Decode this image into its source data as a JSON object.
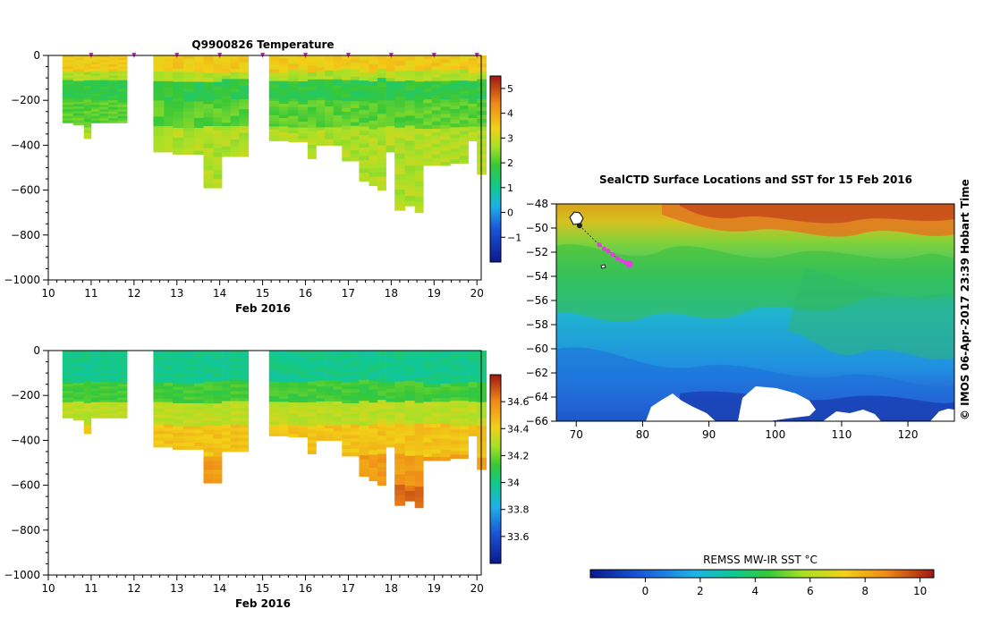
{
  "chart_data": [
    {
      "id": "temperature_section",
      "type": "heatmap",
      "title": "Q9900826  Temperature",
      "xlabel": "Feb 2016",
      "ylabel": "",
      "xlim": [
        10,
        20.1
      ],
      "ylim": [
        -1000,
        0
      ],
      "xticks": [
        10,
        11,
        12,
        13,
        14,
        15,
        16,
        17,
        18,
        19,
        20
      ],
      "yticks": [
        0,
        -200,
        -400,
        -600,
        -800,
        -1000
      ],
      "colorbar": {
        "min": -2,
        "max": 5.5,
        "ticks": [
          -1,
          0,
          1,
          2,
          3,
          4,
          5
        ]
      },
      "surfacing_markers": [
        11,
        12,
        13,
        14,
        15,
        16,
        17,
        18,
        19,
        20
      ],
      "profiles": [
        {
          "day": 10.33,
          "depth": 300
        },
        {
          "day": 10.58,
          "depth": 310
        },
        {
          "day": 10.83,
          "depth": 370
        },
        {
          "day": 11.0,
          "depth": 300
        },
        {
          "day": 11.2,
          "depth": 300
        },
        {
          "day": 11.4,
          "depth": 300
        },
        {
          "day": 11.62,
          "depth": 300
        },
        {
          "day": 12.45,
          "depth": 430
        },
        {
          "day": 12.7,
          "depth": 430
        },
        {
          "day": 12.9,
          "depth": 440
        },
        {
          "day": 13.15,
          "depth": 440
        },
        {
          "day": 13.4,
          "depth": 440
        },
        {
          "day": 13.62,
          "depth": 590
        },
        {
          "day": 13.85,
          "depth": 590
        },
        {
          "day": 14.05,
          "depth": 450
        },
        {
          "day": 14.25,
          "depth": 450
        },
        {
          "day": 14.45,
          "depth": 450
        },
        {
          "day": 15.15,
          "depth": 380
        },
        {
          "day": 15.38,
          "depth": 380
        },
        {
          "day": 15.6,
          "depth": 385
        },
        {
          "day": 15.83,
          "depth": 385
        },
        {
          "day": 16.05,
          "depth": 460
        },
        {
          "day": 16.25,
          "depth": 400
        },
        {
          "day": 16.45,
          "depth": 400
        },
        {
          "day": 16.65,
          "depth": 400
        },
        {
          "day": 16.85,
          "depth": 470
        },
        {
          "day": 17.05,
          "depth": 470
        },
        {
          "day": 17.25,
          "depth": 560
        },
        {
          "day": 17.48,
          "depth": 580
        },
        {
          "day": 17.68,
          "depth": 600
        },
        {
          "day": 17.88,
          "depth": 430
        },
        {
          "day": 18.08,
          "depth": 690
        },
        {
          "day": 18.32,
          "depth": 670
        },
        {
          "day": 18.55,
          "depth": 700
        },
        {
          "day": 18.75,
          "depth": 490
        },
        {
          "day": 18.95,
          "depth": 490
        },
        {
          "day": 19.15,
          "depth": 490
        },
        {
          "day": 19.38,
          "depth": 480
        },
        {
          "day": 19.6,
          "depth": 480
        },
        {
          "day": 19.8,
          "depth": 380
        },
        {
          "day": 20.0,
          "depth": 530
        }
      ]
    },
    {
      "id": "salinity_section",
      "type": "heatmap",
      "title": "",
      "xlabel": "Feb 2016",
      "ylabel": "",
      "xlim": [
        10,
        20.1
      ],
      "ylim": [
        -1000,
        0
      ],
      "xticks": [
        10,
        11,
        12,
        13,
        14,
        15,
        16,
        17,
        18,
        19,
        20
      ],
      "yticks": [
        0,
        -200,
        -400,
        -600,
        -800,
        -1000
      ],
      "colorbar": {
        "min": 33.4,
        "max": 34.8,
        "ticks": [
          33.6,
          33.8,
          34,
          34.2,
          34.4,
          34.6
        ]
      }
    },
    {
      "id": "sst_map",
      "type": "heatmap",
      "title": "SealCTD Surface Locations and SST for 15 Feb 2016",
      "xlabel": "",
      "ylabel": "",
      "xlim": [
        67,
        127
      ],
      "ylim": [
        -66,
        -48
      ],
      "xticks": [
        70,
        80,
        90,
        100,
        110,
        120
      ],
      "yticks": [
        -48,
        -50,
        -52,
        -54,
        -56,
        -58,
        -60,
        -62,
        -64,
        -66
      ],
      "track_positions": [
        [
          73.5,
          -51.4
        ],
        [
          74.2,
          -51.7
        ],
        [
          74.8,
          -51.9
        ],
        [
          75.5,
          -52.2
        ],
        [
          76.2,
          -52.5
        ],
        [
          76.8,
          -52.7
        ],
        [
          77.4,
          -52.85
        ],
        [
          78.0,
          -53.0
        ]
      ],
      "start_position": [
        70.5,
        -49.8
      ],
      "colorbar": {
        "label": "REMSS MW-IR SST °C",
        "min": -2,
        "max": 10.5,
        "ticks": [
          0,
          2,
          4,
          6,
          8,
          10
        ]
      },
      "credit": "© IMOS 06-Apr-2017 23:39 Hobart Time"
    }
  ]
}
